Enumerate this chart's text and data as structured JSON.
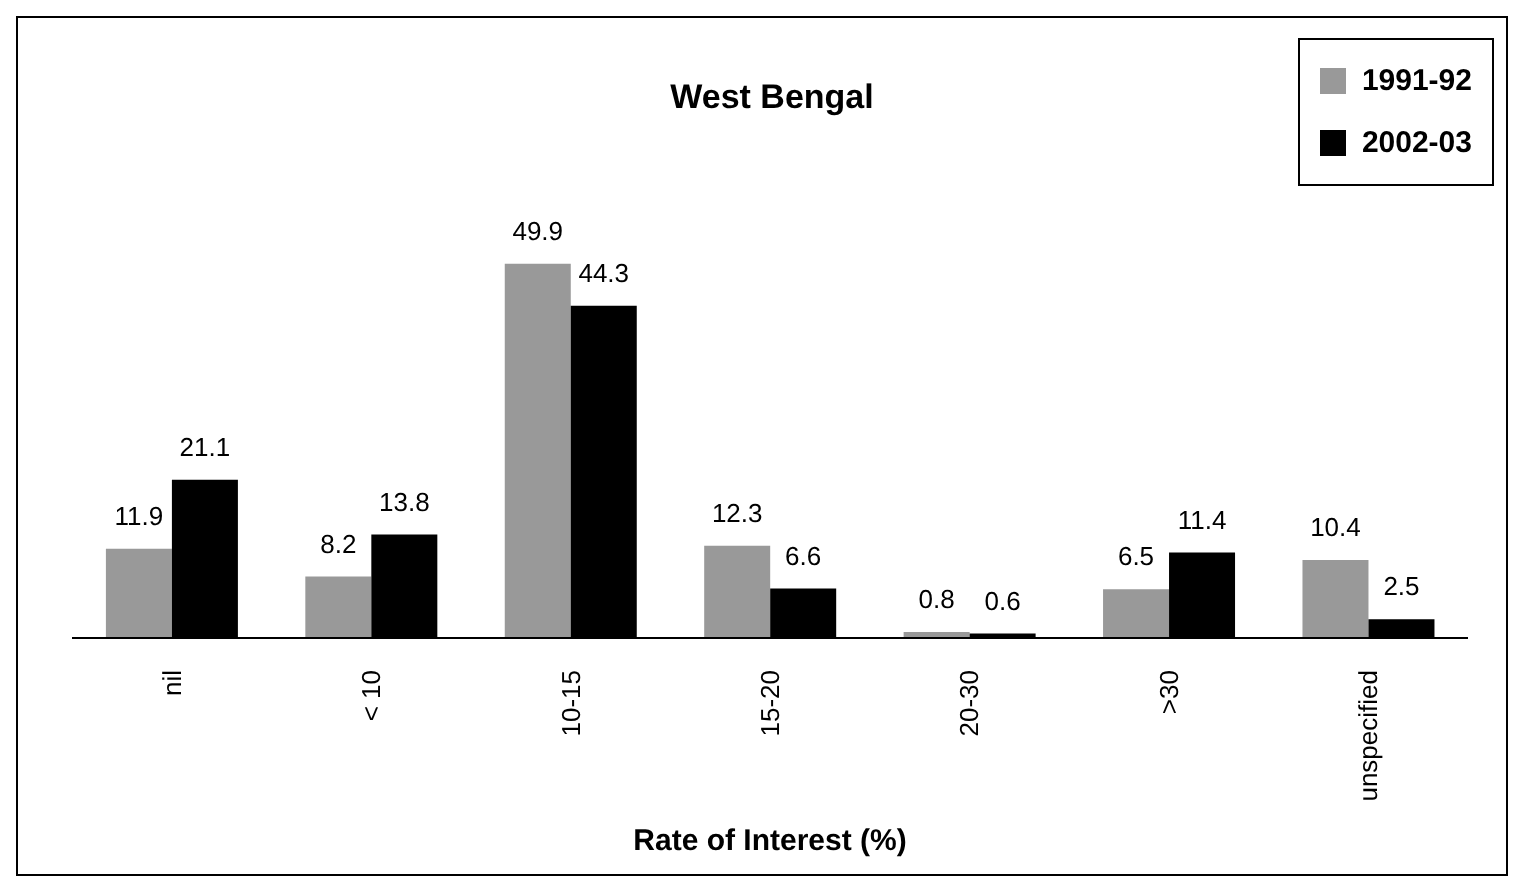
{
  "chart_data": {
    "type": "bar",
    "title": "West Bengal",
    "xlabel": "Rate of Interest (%)",
    "categories": [
      "nil",
      "< 10",
      "10-15",
      "15-20",
      "20-30",
      ">30",
      "unspecified"
    ],
    "series": [
      {
        "name": "1991-92",
        "color": "#999999",
        "values": [
          11.9,
          8.2,
          49.9,
          12.3,
          0.8,
          6.5,
          10.4
        ]
      },
      {
        "name": "2002-03",
        "color": "#000000",
        "values": [
          21.1,
          13.8,
          44.3,
          6.6,
          0.6,
          11.4,
          2.5
        ]
      }
    ],
    "tick_labels": "x",
    "data_labels": true,
    "legend": "top right",
    "grid": false
  }
}
